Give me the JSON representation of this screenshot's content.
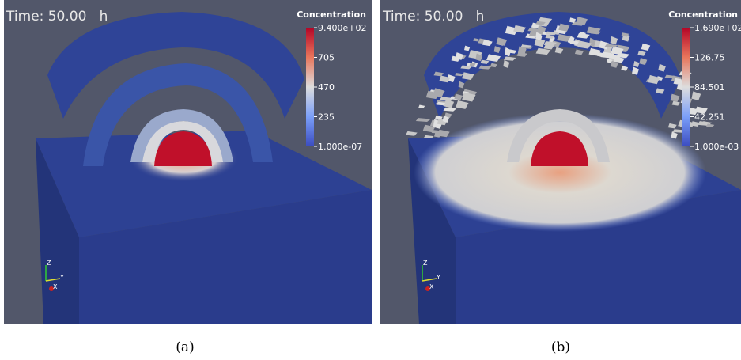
{
  "panels": [
    {
      "time_label": "Time: 50.00   h",
      "colorbar": {
        "title": "Concentration",
        "labels": [
          "9.400e+02",
          "705",
          "470",
          "235",
          "1.000e-07"
        ]
      },
      "axes": {
        "z": "Z",
        "y": "Y",
        "x": "X"
      },
      "caption": "(a)"
    },
    {
      "time_label": "Time: 50.00   h",
      "colorbar": {
        "title": "Concentration",
        "labels": [
          "1.690e+02",
          "126.75",
          "84.501",
          "42.251",
          "1.000e-03"
        ]
      },
      "axes": {
        "z": "Z",
        "y": "Y",
        "x": "X"
      },
      "caption": "(b)"
    }
  ]
}
